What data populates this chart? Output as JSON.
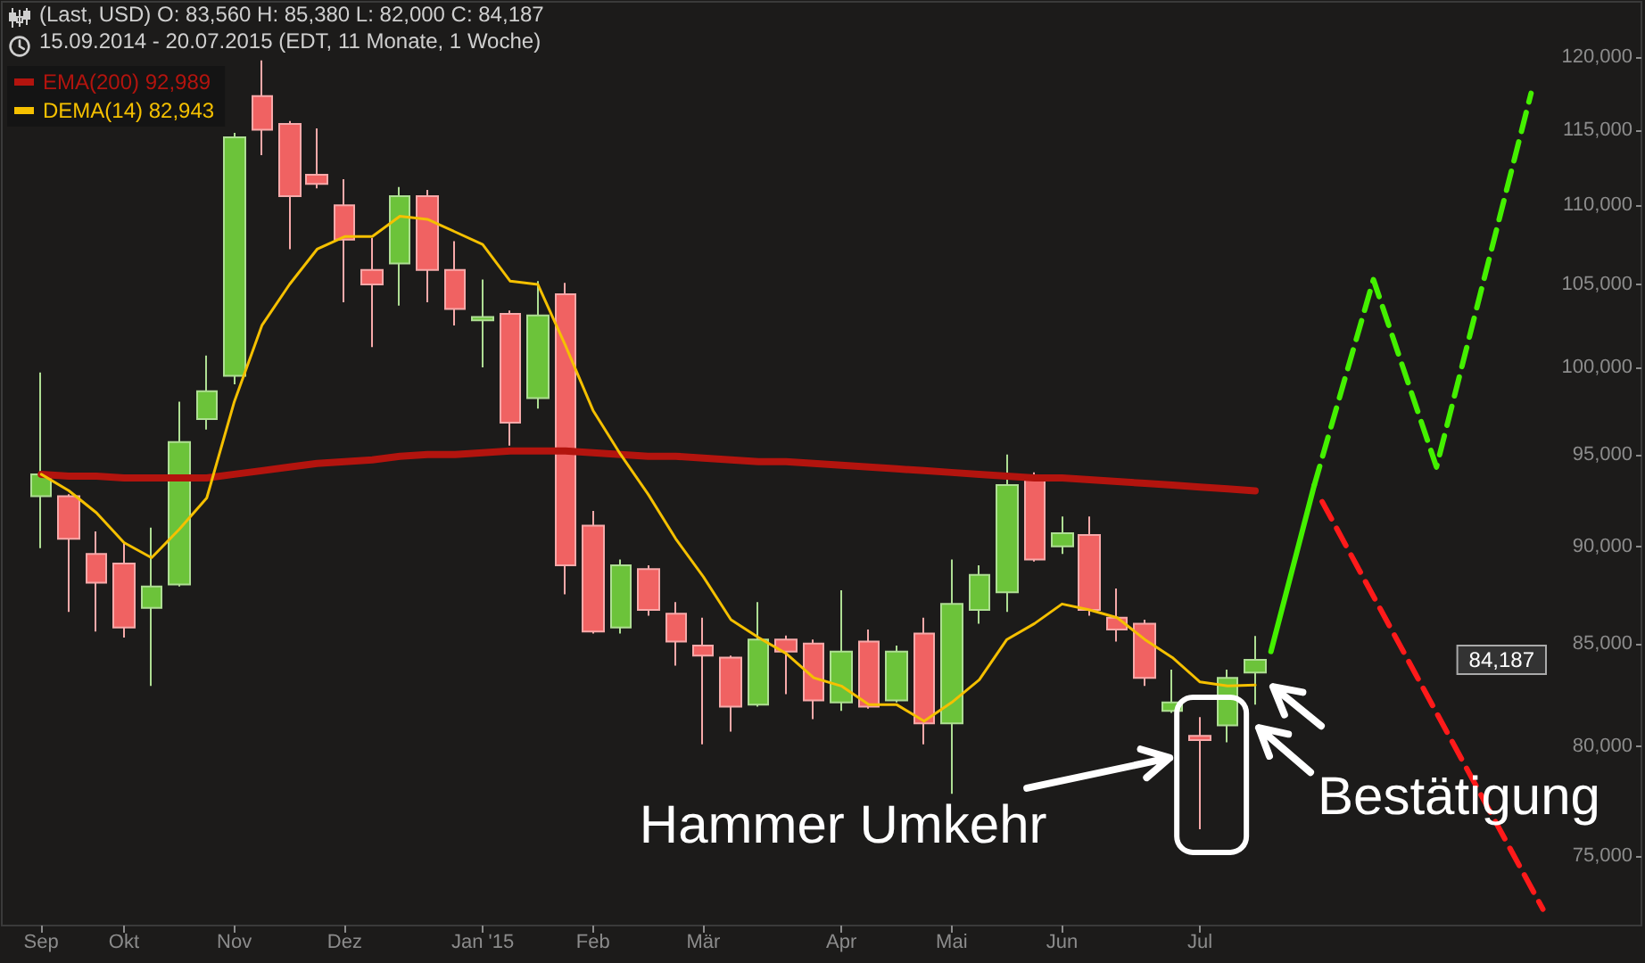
{
  "chart_data": {
    "type": "candlestick",
    "title": "(Last, USD) O: 83,560 H: 85,380 L: 82,000 C: 84,187",
    "subtitle": "15.09.2014 - 20.07.2015 (EDT, 11 Monate, 1 Woche)",
    "x": [
      "2014-09-15",
      "2014-09-22",
      "2014-09-29",
      "2014-10-06",
      "2014-10-13",
      "2014-10-20",
      "2014-10-27",
      "2014-11-03",
      "2014-11-10",
      "2014-11-17",
      "2014-11-24",
      "2014-12-01",
      "2014-12-08",
      "2014-12-15",
      "2014-12-22",
      "2014-12-29",
      "2015-01-05",
      "2015-01-12",
      "2015-01-19",
      "2015-01-26",
      "2015-02-02",
      "2015-02-09",
      "2015-02-16",
      "2015-02-23",
      "2015-03-02",
      "2015-03-09",
      "2015-03-16",
      "2015-03-23",
      "2015-03-30",
      "2015-04-06",
      "2015-04-13",
      "2015-04-20",
      "2015-04-27",
      "2015-05-04",
      "2015-05-11",
      "2015-05-18",
      "2015-05-25",
      "2015-06-01",
      "2015-06-08",
      "2015-06-15",
      "2015-06-22",
      "2015-06-29",
      "2015-07-06",
      "2015-07-13",
      "2015-07-20"
    ],
    "ohlc": [
      [
        92700,
        99700,
        89900,
        93900
      ],
      [
        92700,
        92800,
        86600,
        90400
      ],
      [
        89600,
        90800,
        85600,
        88100
      ],
      [
        89100,
        90200,
        85300,
        85800
      ],
      [
        86800,
        91000,
        82900,
        87900
      ],
      [
        88000,
        98000,
        87900,
        95700
      ],
      [
        97000,
        100700,
        96400,
        98600
      ],
      [
        99500,
        114800,
        99000,
        114500
      ],
      [
        117300,
        119800,
        113300,
        115000
      ],
      [
        115400,
        115600,
        107200,
        110600
      ],
      [
        112000,
        115100,
        111100,
        111400
      ],
      [
        110000,
        111700,
        103900,
        107800
      ],
      [
        105900,
        107900,
        101200,
        105000
      ],
      [
        106300,
        111200,
        103700,
        110600
      ],
      [
        110600,
        111000,
        103900,
        105900
      ],
      [
        105900,
        107700,
        102500,
        103500
      ],
      [
        102800,
        105300,
        100000,
        103000
      ],
      [
        103200,
        103400,
        95500,
        96800
      ],
      [
        98200,
        105200,
        97600,
        103100
      ],
      [
        104400,
        105100,
        87500,
        89000
      ],
      [
        91100,
        91900,
        85500,
        85600
      ],
      [
        85800,
        89300,
        85500,
        89000
      ],
      [
        88800,
        89000,
        86400,
        86700
      ],
      [
        86500,
        87100,
        83900,
        85100
      ],
      [
        84900,
        86300,
        80100,
        84400
      ],
      [
        84300,
        84400,
        80700,
        81900
      ],
      [
        82000,
        87100,
        81900,
        85200
      ],
      [
        85200,
        85400,
        82500,
        84600
      ],
      [
        85000,
        85200,
        81300,
        82200
      ],
      [
        82100,
        87700,
        81700,
        84600
      ],
      [
        85100,
        85700,
        81800,
        81900
      ],
      [
        82200,
        84900,
        82100,
        84600
      ],
      [
        85500,
        86300,
        80100,
        81100
      ],
      [
        81100,
        89300,
        77800,
        87000
      ],
      [
        86700,
        89000,
        86000,
        88500
      ],
      [
        87600,
        95000,
        86600,
        93300
      ],
      [
        93800,
        94000,
        89200,
        89300
      ],
      [
        90000,
        91600,
        89600,
        90700
      ],
      [
        90600,
        91600,
        86400,
        86700
      ],
      [
        86300,
        87800,
        85100,
        85700
      ],
      [
        86000,
        86200,
        82900,
        83300
      ],
      [
        81700,
        83700,
        81600,
        82100
      ],
      [
        80500,
        81400,
        76200,
        80300
      ],
      [
        81000,
        83700,
        80200,
        83300
      ],
      [
        83560,
        85380,
        82000,
        84187
      ]
    ],
    "colors": [
      "#6cc33a",
      "#f06262",
      "#f06262",
      "#f06262",
      "#6cc33a",
      "#6cc33a",
      "#6cc33a",
      "#6cc33a",
      "#f06262",
      "#f06262",
      "#f06262",
      "#f06262",
      "#f06262",
      "#6cc33a",
      "#f06262",
      "#f06262",
      "#6cc33a",
      "#f06262",
      "#6cc33a",
      "#f06262",
      "#f06262",
      "#6cc33a",
      "#f06262",
      "#f06262",
      "#f06262",
      "#f06262",
      "#6cc33a",
      "#f06262",
      "#f06262",
      "#6cc33a",
      "#f06262",
      "#6cc33a",
      "#f06262",
      "#6cc33a",
      "#6cc33a",
      "#6cc33a",
      "#f06262",
      "#6cc33a",
      "#f06262",
      "#f06262",
      "#f06262",
      "#6cc33a",
      "#f06262",
      "#6cc33a",
      "#6cc33a"
    ],
    "series": [
      {
        "name": "EMA(200) 92,989",
        "type": "line",
        "color": "#b3140e",
        "line_style": "solid",
        "values": [
          93900,
          93800,
          93800,
          93700,
          93700,
          93700,
          93700,
          93900,
          94100,
          94300,
          94500,
          94600,
          94700,
          94900,
          95000,
          95000,
          95100,
          95200,
          95200,
          95200,
          95100,
          95000,
          94900,
          94900,
          94800,
          94700,
          94600,
          94600,
          94500,
          94400,
          94300,
          94200,
          94100,
          94000,
          93900,
          93800,
          93700,
          93700,
          93600,
          93500,
          93400,
          93300,
          93200,
          93100,
          92989
        ]
      },
      {
        "name": "DEMA(14) 82,943",
        "type": "line",
        "color": "#f5c000",
        "line_style": "solid",
        "values": [
          93900,
          93000,
          91800,
          90200,
          89400,
          90900,
          92600,
          98000,
          102500,
          105000,
          107200,
          108000,
          108000,
          109300,
          109100,
          108300,
          107500,
          105200,
          105000,
          101300,
          97500,
          95000,
          92800,
          90400,
          88400,
          86200,
          85300,
          84500,
          83300,
          82900,
          82000,
          82000,
          81200,
          82100,
          83200,
          85200,
          86000,
          87000,
          86700,
          86300,
          85200,
          84300,
          83100,
          82900,
          82943
        ]
      },
      {
        "type": "line",
        "color": "#44f000",
        "line_style": "solid",
        "x": [
          "2015-07-24",
          "2015-08-04"
        ],
        "values": [
          84600,
          93300
        ]
      },
      {
        "type": "line",
        "color": "#44f000",
        "line_style": "dashed",
        "x": [
          "2015-08-04",
          "2015-08-19",
          "2015-09-04",
          "2015-09-28"
        ],
        "values": [
          93300,
          105300,
          94300,
          117500
        ]
      },
      {
        "type": "line",
        "color": "#ff1a1a",
        "line_style": "dashed",
        "x": [
          "2015-08-06",
          "2015-10-01"
        ],
        "values": [
          92400,
          72700
        ]
      }
    ],
    "xlim": [
      "2014-09-05",
      "2015-10-26"
    ],
    "xticks": [
      {
        "value": "2014-09-15",
        "label": "Sep"
      },
      {
        "value": "2014-10-06",
        "label": "Okt"
      },
      {
        "value": "2014-11-03",
        "label": "Nov"
      },
      {
        "value": "2014-12-01",
        "label": "Dez"
      },
      {
        "value": "2015-01-05",
        "label": "Jan '15"
      },
      {
        "value": "2015-02-02",
        "label": "Feb"
      },
      {
        "value": "2015-03-02",
        "label": "Mär"
      },
      {
        "value": "2015-04-06",
        "label": "Apr"
      },
      {
        "value": "2015-05-04",
        "label": "Mai"
      },
      {
        "value": "2015-06-01",
        "label": "Jun"
      },
      {
        "value": "2015-07-06",
        "label": "Jul"
      }
    ],
    "ylim": [
      72000,
      124000
    ],
    "yticks": [
      {
        "value": 75000,
        "label": "75,000"
      },
      {
        "value": 80000,
        "label": "80,000"
      },
      {
        "value": 85000,
        "label": "85,000"
      },
      {
        "value": 90000,
        "label": "90,000"
      },
      {
        "value": 95000,
        "label": "95,000"
      },
      {
        "value": 100000,
        "label": "100,000"
      },
      {
        "value": 105000,
        "label": "105,000"
      },
      {
        "value": 110000,
        "label": "110,000"
      },
      {
        "value": 115000,
        "label": "115,000"
      },
      {
        "value": 120000,
        "label": "120,000"
      }
    ],
    "log": true,
    "grid": false,
    "legend": "top left",
    "marker": "none",
    "annotations": [
      {
        "text": "Hammer Umkehr",
        "x": "2015-07-06",
        "y": 76200
      },
      {
        "text": "Bestätigung",
        "x": "2015-07-20",
        "y": 82000
      },
      "84,187"
    ]
  }
}
